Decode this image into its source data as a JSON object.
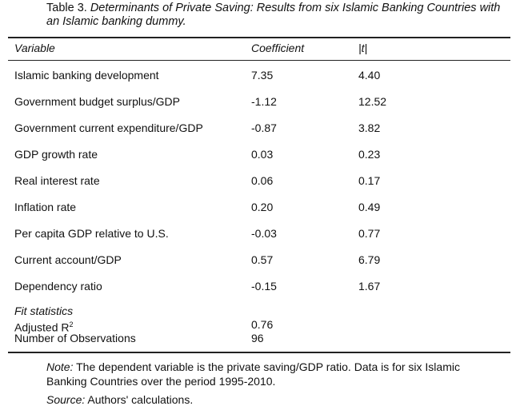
{
  "caption": {
    "prefix": "Table 3. ",
    "title": "Determinants of Private Saving: Results from six Islamic Banking Countries with an Islamic banking dummy."
  },
  "headers": {
    "variable": "Variable",
    "coefficient": "Coefficient",
    "t": "|t|"
  },
  "rows": [
    {
      "variable": "Islamic banking development",
      "coefficient": "7.35",
      "t": "4.40"
    },
    {
      "variable": "Government budget surplus/GDP",
      "coefficient": "-1.12",
      "t": "12.52"
    },
    {
      "variable": "Government current expenditure/GDP",
      "coefficient": "-0.87",
      "t": "3.82"
    },
    {
      "variable": "GDP growth rate",
      "coefficient": "0.03",
      "t": "0.23"
    },
    {
      "variable": "Real interest rate",
      "coefficient": "0.06",
      "t": "0.17"
    },
    {
      "variable": "Inflation rate",
      "coefficient": "0.20",
      "t": "0.49"
    },
    {
      "variable": "Per capita GDP relative to U.S.",
      "coefficient": "-0.03",
      "t": "0.77"
    },
    {
      "variable": "Current account/GDP",
      "coefficient": "0.57",
      "t": "6.79"
    },
    {
      "variable": "Dependency ratio",
      "coefficient": "-0.15",
      "t": "1.67"
    }
  ],
  "fit": {
    "heading": "Fit statistics",
    "adj_label": "Adjusted R",
    "adj_sup": "2",
    "adj_value": "0.76",
    "obs_label": "Number of Observations",
    "obs_value": "96"
  },
  "note": {
    "label": "Note:",
    "text": " The dependent variable is the private saving/GDP ratio. Data is for six Islamic Banking Countries over the period 1995-2010."
  },
  "source": {
    "label": "Source:",
    "text": " Authors' calculations."
  }
}
